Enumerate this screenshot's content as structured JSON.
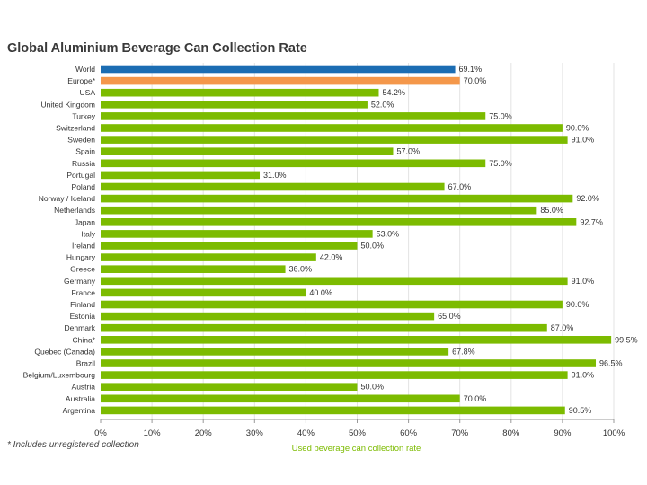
{
  "chart_data": {
    "type": "bar",
    "orientation": "horizontal",
    "title": "Global Aluminium Beverage Can Collection Rate",
    "xlabel": "Used beverage can collection rate",
    "ylabel": "",
    "xlim": [
      0,
      100
    ],
    "x_ticks": [
      "0%",
      "10%",
      "20%",
      "30%",
      "40%",
      "50%",
      "60%",
      "70%",
      "80%",
      "90%",
      "100%"
    ],
    "grid": true,
    "footnote": "* Includes unregistered collection",
    "colors": {
      "default": "#7cbb00",
      "world": "#1b6db3",
      "europe": "#f4974a"
    },
    "categories": [
      "World",
      "Europe*",
      "USA",
      "United Kingdom",
      "Turkey",
      "Switzerland",
      "Sweden",
      "Spain",
      "Russia",
      "Portugal",
      "Poland",
      "Norway / Iceland",
      "Netherlands",
      "Japan",
      "Italy",
      "Ireland",
      "Hungary",
      "Greece",
      "Germany",
      "France",
      "Finland",
      "Estonia",
      "Denmark",
      "China*",
      "Quebec (Canada)",
      "Brazil",
      "Belgium/Luxembourg",
      "Austria",
      "Australia",
      "Argentina"
    ],
    "values": [
      69.1,
      70.0,
      54.2,
      52.0,
      75.0,
      90.0,
      91.0,
      57.0,
      75.0,
      31.0,
      67.0,
      92.0,
      85.0,
      92.7,
      53.0,
      50.0,
      42.0,
      36.0,
      91.0,
      40.0,
      90.0,
      65.0,
      87.0,
      99.5,
      67.8,
      96.5,
      91.0,
      50.0,
      70.0,
      90.5
    ],
    "value_labels": [
      "69.1%",
      "70.0%",
      "54.2%",
      "52.0%",
      "75.0%",
      "90.0%",
      "91.0%",
      "57.0%",
      "75.0%",
      "31.0%",
      "67.0%",
      "92.0%",
      "85.0%",
      "92.7%",
      "53.0%",
      "50.0%",
      "42.0%",
      "36.0%",
      "91.0%",
      "40.0%",
      "90.0%",
      "65.0%",
      "87.0%",
      "99.5%",
      "67.8%",
      "96.5%",
      "91.0%",
      "50.0%",
      "70.0%",
      "90.5%"
    ],
    "bar_colors": [
      "#1b6db3",
      "#f4974a",
      "#7cbb00",
      "#7cbb00",
      "#7cbb00",
      "#7cbb00",
      "#7cbb00",
      "#7cbb00",
      "#7cbb00",
      "#7cbb00",
      "#7cbb00",
      "#7cbb00",
      "#7cbb00",
      "#7cbb00",
      "#7cbb00",
      "#7cbb00",
      "#7cbb00",
      "#7cbb00",
      "#7cbb00",
      "#7cbb00",
      "#7cbb00",
      "#7cbb00",
      "#7cbb00",
      "#7cbb00",
      "#7cbb00",
      "#7cbb00",
      "#7cbb00",
      "#7cbb00",
      "#7cbb00",
      "#7cbb00"
    ]
  }
}
